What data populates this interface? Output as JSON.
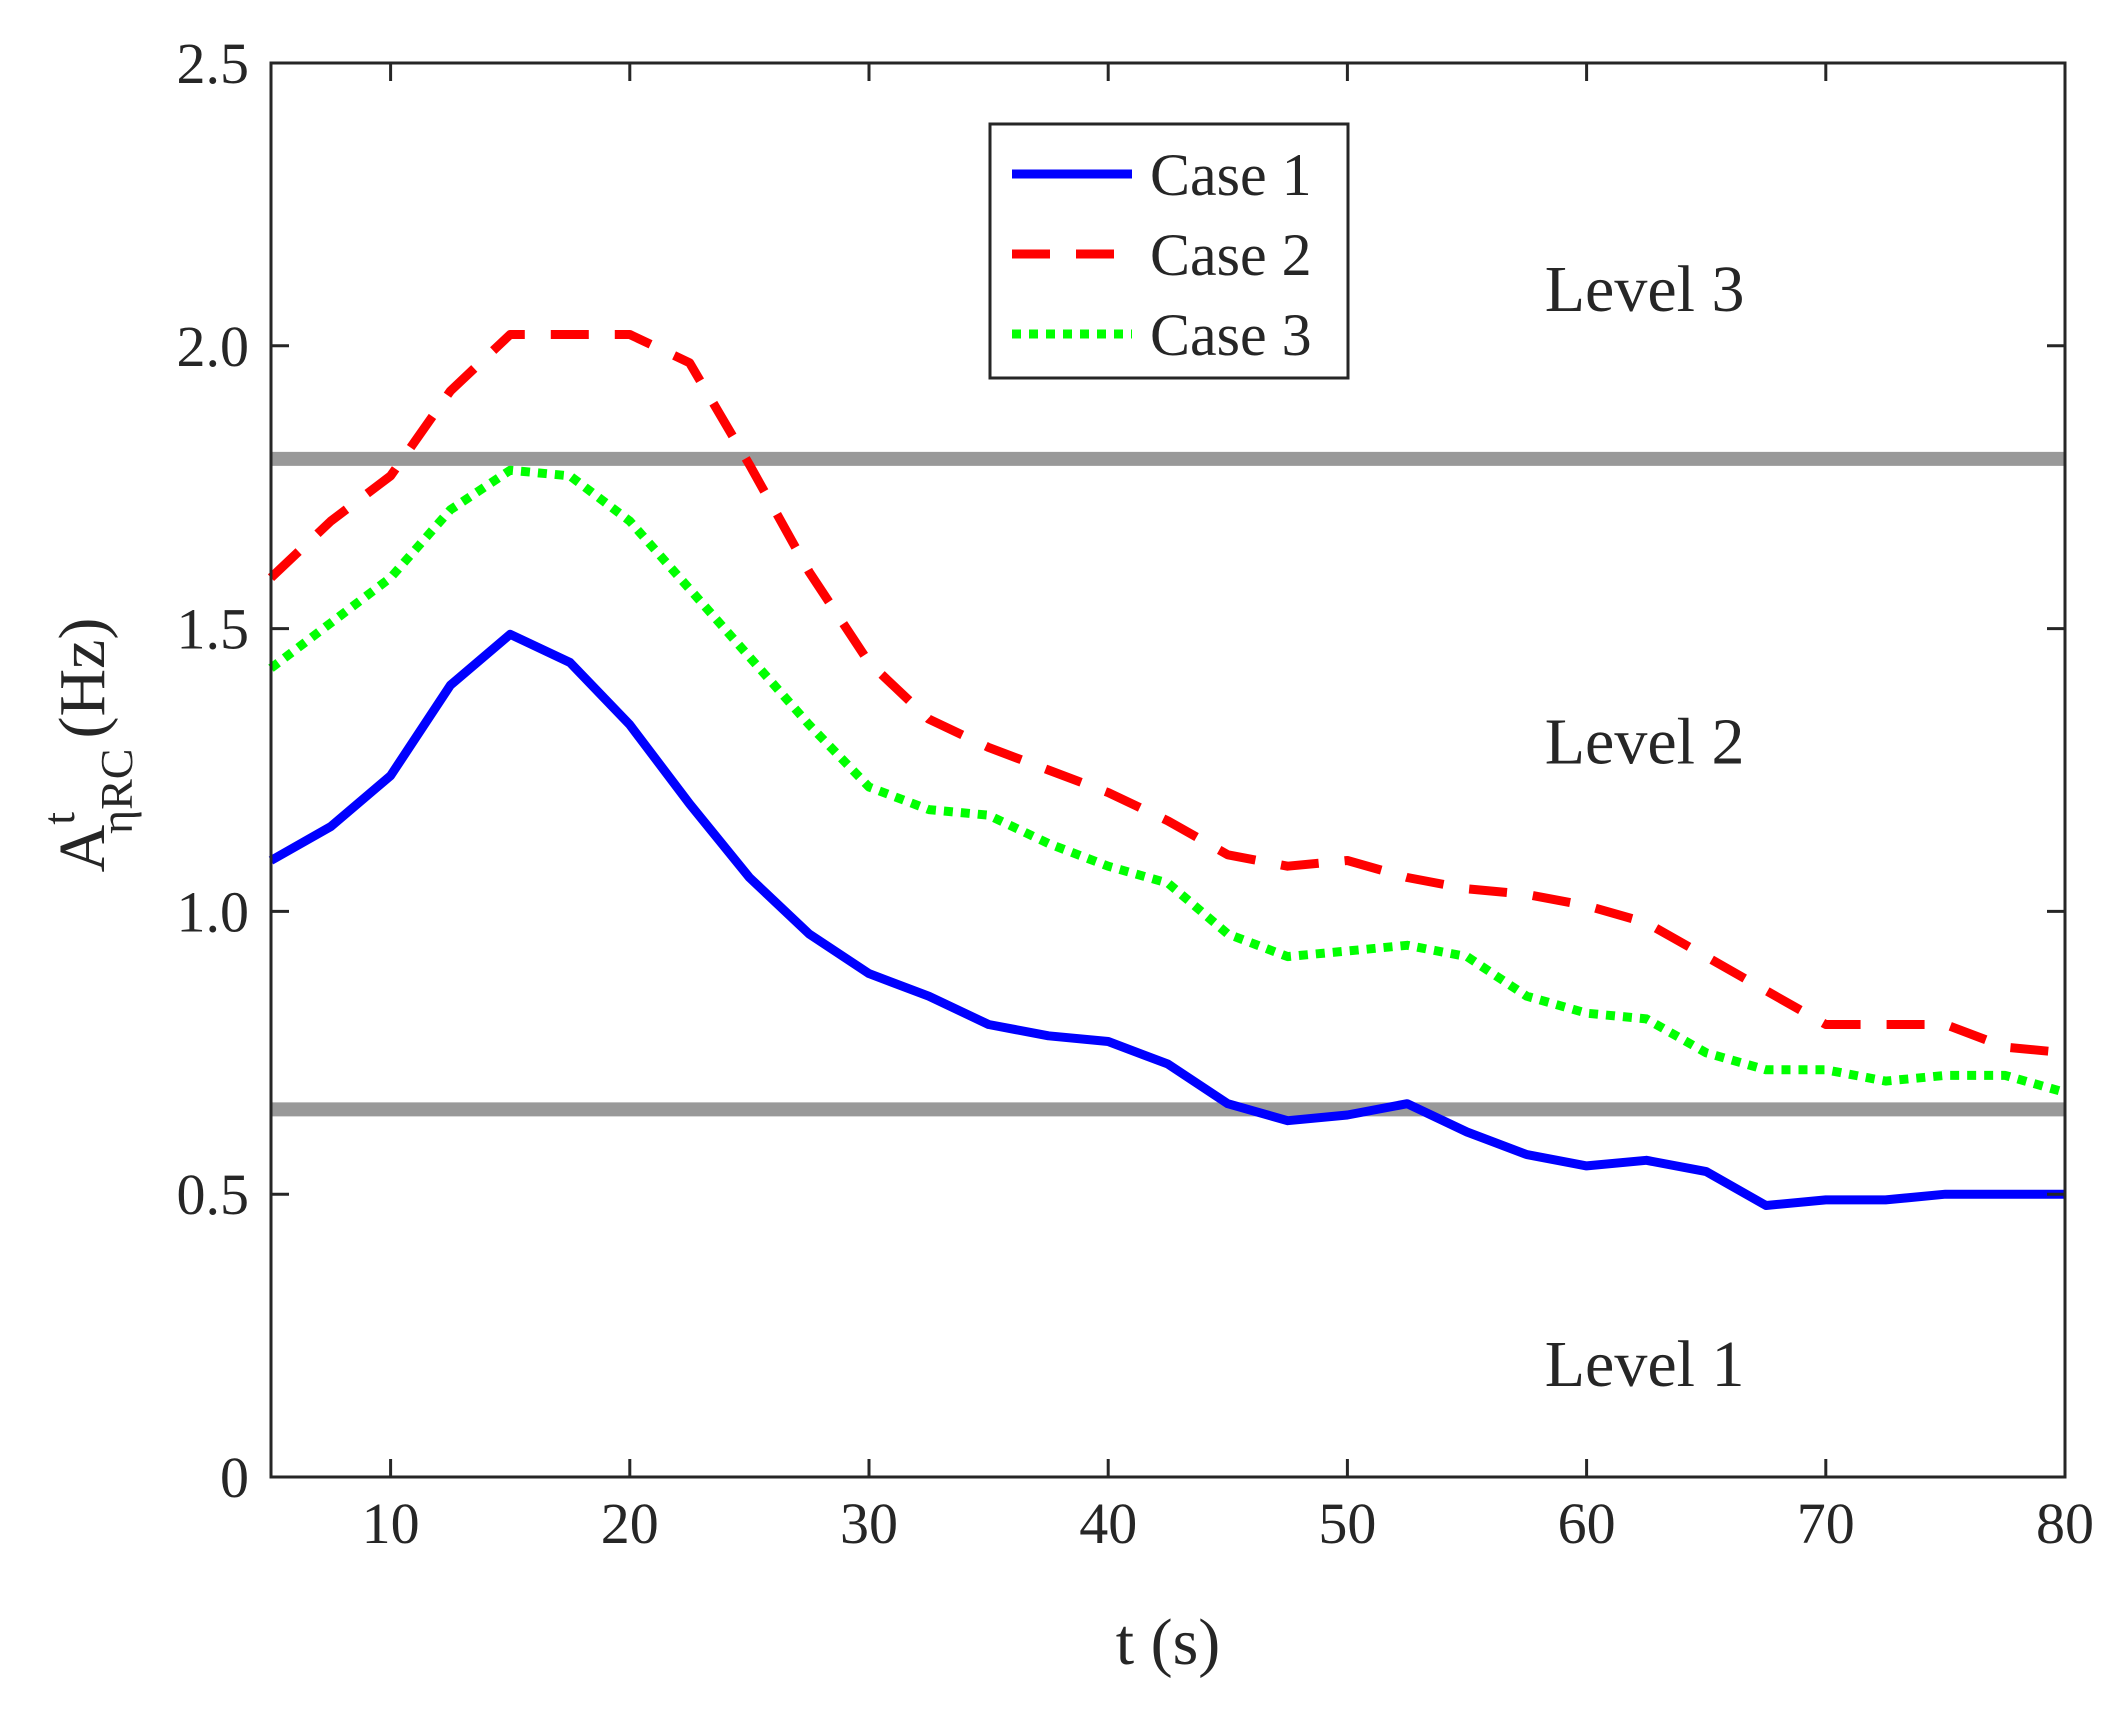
{
  "chart_data": {
    "type": "line",
    "title": "",
    "xlabel": "t (s)",
    "ylabel": {
      "main": "A",
      "superscript": "t",
      "subscript": "ηRC",
      "unit": "(Hz)"
    },
    "xlim": [
      5,
      80
    ],
    "ylim": [
      0,
      2.5
    ],
    "xticks": [
      10,
      20,
      30,
      40,
      50,
      60,
      70,
      80
    ],
    "xtick_labels": [
      "10",
      "20",
      "30",
      "40",
      "50",
      "60",
      "70",
      "80"
    ],
    "yticks": [
      0,
      0.5,
      1.0,
      1.5,
      2.0,
      2.5
    ],
    "ytick_labels": [
      "0",
      "0.5",
      "1.0",
      "1.5",
      "2.0",
      "2.5"
    ],
    "grid": false,
    "legend_position": "top-center",
    "thresholds": [
      {
        "name": "upper",
        "y": 1.8,
        "color": "#999999"
      },
      {
        "name": "lower",
        "y": 0.65,
        "color": "#999999"
      }
    ],
    "annotations": [
      {
        "text": "Level 3",
        "x": 60,
        "y": 2.1
      },
      {
        "text": "Level 2",
        "x": 60,
        "y": 1.3
      },
      {
        "text": "Level 1",
        "x": 60,
        "y": 0.2
      }
    ],
    "x": [
      5,
      7.5,
      10,
      12.5,
      15,
      17.5,
      20,
      22.5,
      25,
      27.5,
      30,
      32.5,
      35,
      37.5,
      40,
      42.5,
      45,
      47.5,
      50,
      52.5,
      55,
      57.5,
      60,
      62.5,
      65,
      67.5,
      70,
      72.5,
      75,
      77.5,
      80
    ],
    "series": [
      {
        "name": "Case 1",
        "color": "#0000ff",
        "style": "solid",
        "values": [
          1.09,
          1.15,
          1.24,
          1.4,
          1.49,
          1.44,
          1.33,
          1.19,
          1.06,
          0.96,
          0.89,
          0.85,
          0.8,
          0.78,
          0.77,
          0.73,
          0.66,
          0.63,
          0.64,
          0.66,
          0.61,
          0.57,
          0.55,
          0.56,
          0.54,
          0.48,
          0.49,
          0.49,
          0.5,
          0.5,
          0.5
        ]
      },
      {
        "name": "Case 2",
        "color": "#ff0000",
        "style": "dashed",
        "values": [
          1.59,
          1.69,
          1.77,
          1.92,
          2.02,
          2.02,
          2.02,
          1.97,
          1.79,
          1.6,
          1.44,
          1.34,
          1.29,
          1.25,
          1.21,
          1.16,
          1.1,
          1.08,
          1.09,
          1.06,
          1.04,
          1.03,
          1.01,
          0.98,
          0.92,
          0.86,
          0.8,
          0.8,
          0.8,
          0.76,
          0.75
        ]
      },
      {
        "name": "Case 3",
        "color": "#00ff00",
        "style": "dotted",
        "values": [
          1.43,
          1.51,
          1.59,
          1.71,
          1.78,
          1.77,
          1.69,
          1.57,
          1.45,
          1.33,
          1.22,
          1.18,
          1.17,
          1.12,
          1.08,
          1.05,
          0.96,
          0.92,
          0.93,
          0.94,
          0.92,
          0.85,
          0.82,
          0.81,
          0.75,
          0.72,
          0.72,
          0.7,
          0.71,
          0.71,
          0.68
        ]
      }
    ]
  }
}
